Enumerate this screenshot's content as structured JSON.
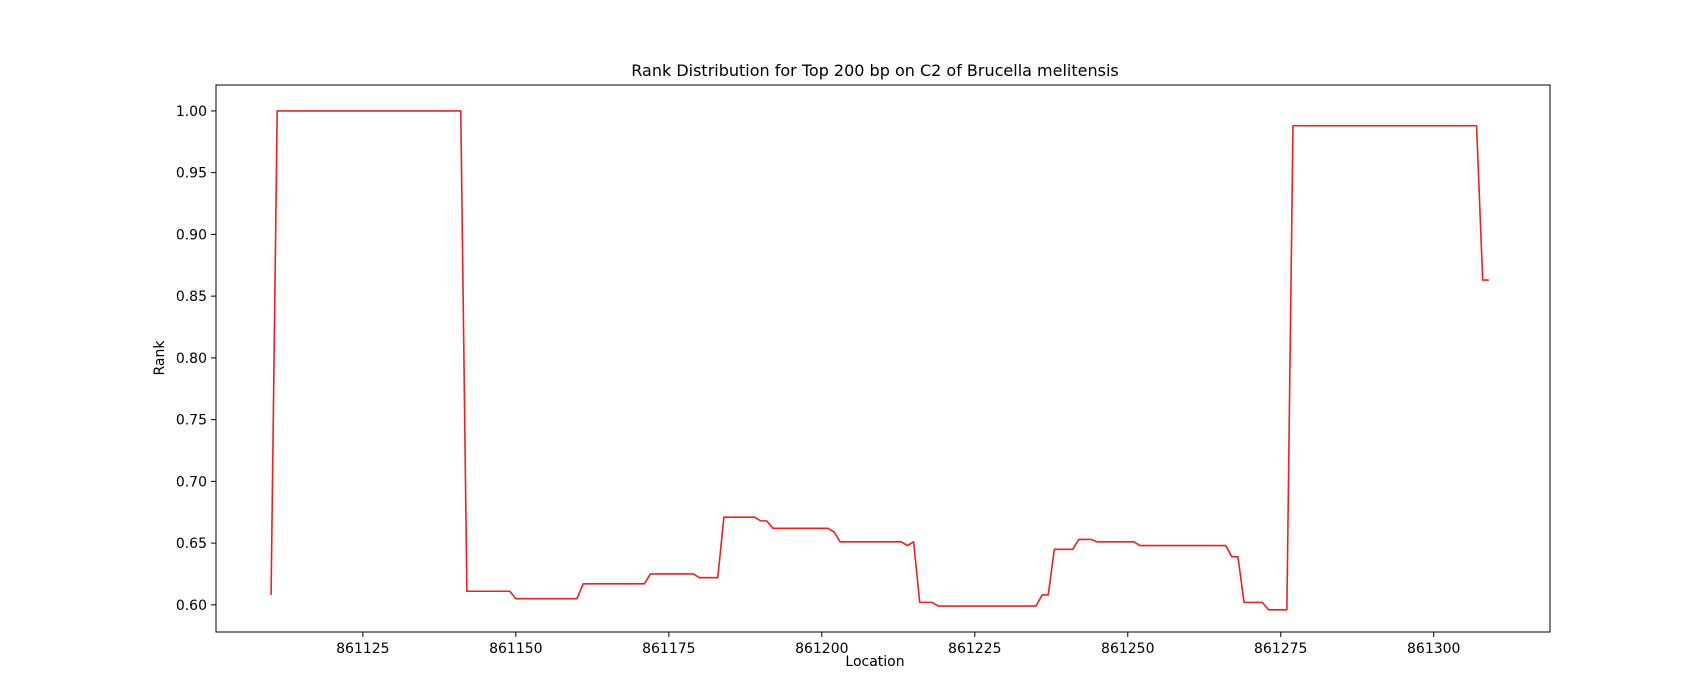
{
  "chart_data": {
    "type": "line",
    "title": "Rank Distribution for Top 200 bp on C2 of Brucella melitensis",
    "xlabel": "Location",
    "ylabel": "Rank",
    "xlim": [
      861101,
      861319
    ],
    "ylim": [
      0.578,
      1.021
    ],
    "xticks": [
      861125,
      861150,
      861175,
      861200,
      861225,
      861250,
      861275,
      861300
    ],
    "xtick_labels": [
      "861125",
      "861150",
      "861175",
      "861200",
      "861225",
      "861250",
      "861275",
      "861300"
    ],
    "yticks": [
      0.6,
      0.65,
      0.7,
      0.75,
      0.8,
      0.85,
      0.9,
      0.95,
      1.0
    ],
    "ytick_labels": [
      "0.60",
      "0.65",
      "0.70",
      "0.75",
      "0.80",
      "0.85",
      "0.90",
      "0.95",
      "1.00"
    ],
    "grid": false,
    "series": [
      {
        "color": "#e8231f",
        "x": [
          861110,
          861111,
          861141,
          861142,
          861149,
          861150,
          861160,
          861161,
          861171,
          861172,
          861179,
          861180,
          861183,
          861184,
          861189,
          861190,
          861191,
          861192,
          861201,
          861202,
          861203,
          861213,
          861214,
          861215,
          861216,
          861218,
          861219,
          861235,
          861236,
          861237,
          861238,
          861241,
          861242,
          861244,
          861245,
          861251,
          861252,
          861266,
          861267,
          861268,
          861269,
          861272,
          861273,
          861276,
          861277,
          861307,
          861308,
          861309
        ],
        "y": [
          0.608,
          1.0,
          1.0,
          0.611,
          0.611,
          0.605,
          0.605,
          0.617,
          0.617,
          0.625,
          0.625,
          0.622,
          0.622,
          0.671,
          0.671,
          0.668,
          0.668,
          0.662,
          0.662,
          0.659,
          0.651,
          0.651,
          0.648,
          0.651,
          0.602,
          0.602,
          0.599,
          0.599,
          0.608,
          0.608,
          0.645,
          0.645,
          0.653,
          0.653,
          0.651,
          0.651,
          0.648,
          0.648,
          0.639,
          0.639,
          0.602,
          0.602,
          0.596,
          0.596,
          0.988,
          0.988,
          0.863,
          0.863
        ]
      }
    ]
  }
}
